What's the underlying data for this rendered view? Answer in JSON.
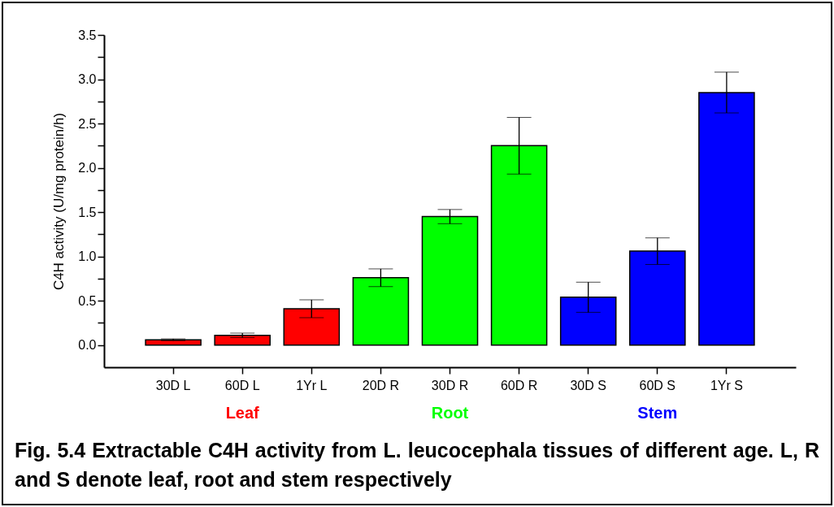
{
  "chart_data": {
    "type": "bar",
    "ylabel": "C4H activity (U/mg protein/h)",
    "categories": [
      "30D  L",
      "60D  L",
      "1Yr L",
      "20D  R",
      "30D  R",
      "60D  R",
      "30D  S",
      "60D  S",
      "1Yr S"
    ],
    "values": [
      0.06,
      0.11,
      0.41,
      0.76,
      1.45,
      2.25,
      0.54,
      1.06,
      2.85
    ],
    "errors": [
      0.01,
      0.025,
      0.1,
      0.1,
      0.08,
      0.32,
      0.17,
      0.15,
      0.23
    ],
    "colors": [
      "#ff0000",
      "#ff0000",
      "#ff0000",
      "#00ff00",
      "#00ff00",
      "#00ff00",
      "#0000ff",
      "#0000ff",
      "#0000ff"
    ],
    "ylim": [
      -0.25,
      3.5
    ],
    "yticks": [
      {
        "value": 0,
        "label": "0.0"
      },
      {
        "value": 0.25,
        "label": null
      },
      0.5,
      {
        "value": 0.75,
        "label": null
      },
      {
        "value": 1,
        "label": "1.0"
      },
      {
        "value": 1.25,
        "label": null
      },
      1.5,
      {
        "value": 1.75,
        "label": null
      },
      {
        "value": 2,
        "label": "2.0"
      },
      {
        "value": 2.25,
        "label": null
      },
      2.5,
      {
        "value": 2.75,
        "label": null
      },
      {
        "value": 3,
        "label": "3.0"
      },
      {
        "value": 3.25,
        "label": null
      },
      3.5
    ],
    "grid": false,
    "annotations": [
      "Leaf",
      "Root",
      "Stem",
      "Fig. 5.4 Extractable C4H activity from L. leucocephala tissues of different age. L, R and S denote leaf, root and stem respectively"
    ]
  }
}
